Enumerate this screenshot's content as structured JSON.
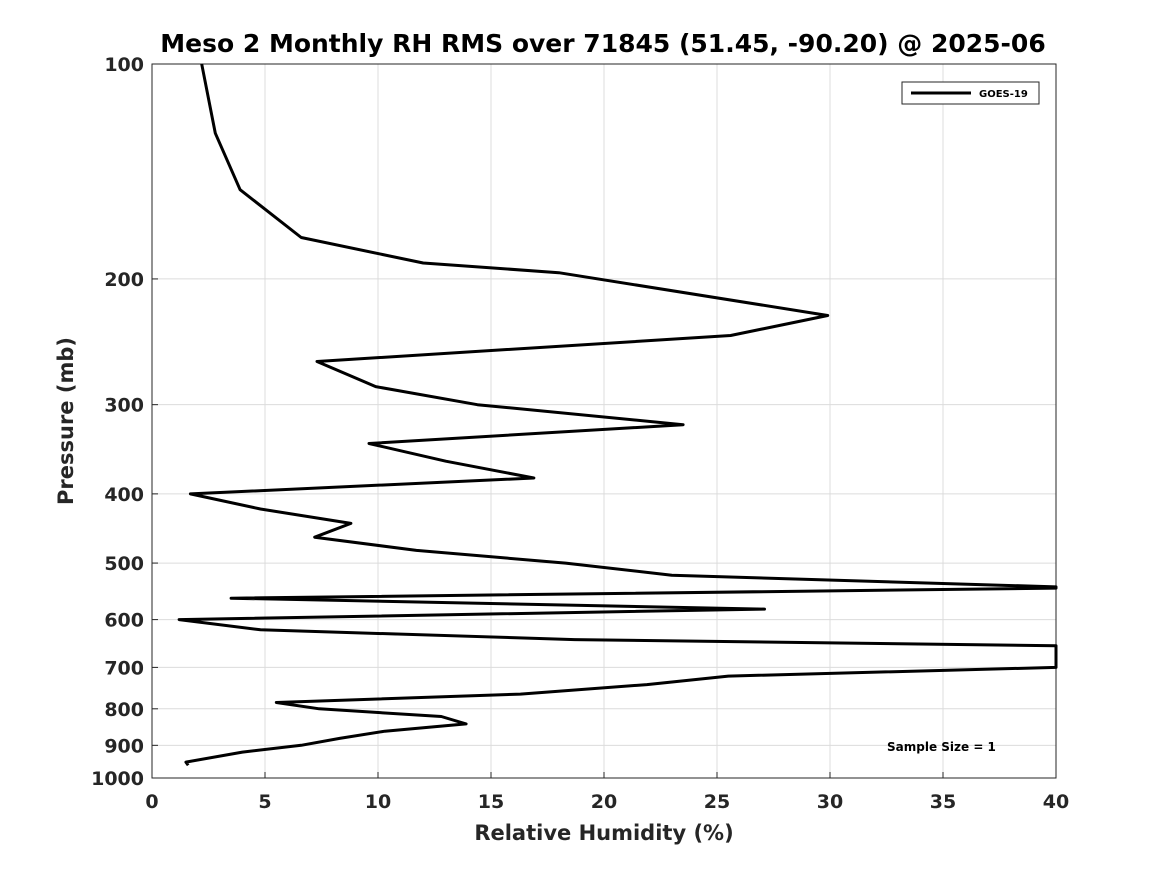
{
  "chart_data": {
    "type": "line",
    "title": "Meso 2 Monthly RH RMS over 71845 (51.45, -90.20) @ 2025-06",
    "xlabel": "Relative Humidity (%)",
    "ylabel": "Pressure (mb)",
    "xlim": [
      0,
      40
    ],
    "ylim": [
      100,
      1000
    ],
    "yscale": "log",
    "y_reversed": true,
    "grid": true,
    "x_ticks": [
      0,
      5,
      10,
      15,
      20,
      25,
      30,
      35,
      40
    ],
    "y_ticks": [
      100,
      200,
      300,
      400,
      500,
      600,
      700,
      800,
      900,
      1000
    ],
    "legend": {
      "position": "top-right",
      "entries": [
        "GOES-19"
      ]
    },
    "annotation": "Sample Size = 1",
    "series": [
      {
        "name": "GOES-19",
        "color": "#000000",
        "points": [
          [
            2.2,
            100
          ],
          [
            2.8,
            125
          ],
          [
            3.9,
            150
          ],
          [
            6.6,
            175
          ],
          [
            12.0,
            190
          ],
          [
            18.0,
            196
          ],
          [
            29.9,
            225
          ],
          [
            25.6,
            240
          ],
          [
            7.3,
            261
          ],
          [
            9.9,
            283
          ],
          [
            14.4,
            300
          ],
          [
            23.5,
            320
          ],
          [
            9.6,
            340
          ],
          [
            13.0,
            360
          ],
          [
            16.9,
            380
          ],
          [
            1.7,
            400
          ],
          [
            4.8,
            420
          ],
          [
            8.8,
            440
          ],
          [
            7.2,
            460
          ],
          [
            11.7,
            480
          ],
          [
            18.3,
            500
          ],
          [
            23.0,
            520
          ],
          [
            40.0,
            540
          ],
          [
            40.0,
            542
          ],
          [
            3.5,
            560
          ],
          [
            27.1,
            580
          ],
          [
            1.2,
            600
          ],
          [
            4.8,
            620
          ],
          [
            18.7,
            640
          ],
          [
            40.0,
            653
          ],
          [
            40.0,
            700
          ],
          [
            25.5,
            720
          ],
          [
            21.9,
            740
          ],
          [
            16.3,
            763
          ],
          [
            5.5,
            784
          ],
          [
            7.4,
            800
          ],
          [
            12.8,
            820
          ],
          [
            13.9,
            840
          ],
          [
            10.3,
            860
          ],
          [
            8.3,
            880
          ],
          [
            6.6,
            900
          ],
          [
            4.0,
            920
          ],
          [
            1.5,
            950
          ],
          [
            1.6,
            960
          ]
        ]
      }
    ]
  }
}
